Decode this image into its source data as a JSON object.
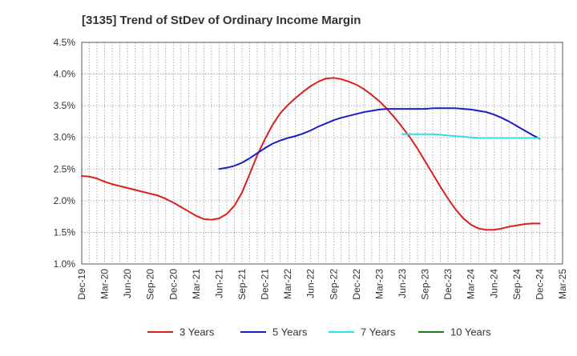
{
  "chart_data": {
    "type": "line",
    "title": "[3135]  Trend of StDev of Ordinary Income Margin",
    "xlabel": "",
    "ylabel": "",
    "y_tick_labels": [
      "1.0%",
      "1.5%",
      "2.0%",
      "2.5%",
      "3.0%",
      "3.5%",
      "4.0%",
      "4.5%"
    ],
    "ylim": [
      1.0,
      4.5
    ],
    "x_tick_labels": [
      "Dec-19",
      "Mar-20",
      "Jun-20",
      "Sep-20",
      "Dec-20",
      "Mar-21",
      "Jun-21",
      "Sep-21",
      "Dec-21",
      "Mar-22",
      "Jun-22",
      "Sep-22",
      "Dec-22",
      "Mar-23",
      "Jun-23",
      "Sep-23",
      "Dec-23",
      "Mar-24",
      "Jun-24",
      "Sep-24",
      "Dec-24",
      "Mar-25"
    ],
    "grid": true,
    "legend_position": "bottom",
    "series": [
      {
        "name": "3 Years",
        "color": "#dd1f1f",
        "x": [
          "Dec-19",
          "Jan-20",
          "Feb-20",
          "Mar-20",
          "Apr-20",
          "May-20",
          "Jun-20",
          "Jul-20",
          "Aug-20",
          "Sep-20",
          "Oct-20",
          "Nov-20",
          "Dec-20",
          "Jan-21",
          "Feb-21",
          "Mar-21",
          "Apr-21",
          "May-21",
          "Jun-21",
          "Jul-21",
          "Aug-21",
          "Sep-21",
          "Oct-21",
          "Nov-21",
          "Dec-21",
          "Jan-22",
          "Feb-22",
          "Mar-22",
          "Apr-22",
          "May-22",
          "Jun-22",
          "Jul-22",
          "Aug-22",
          "Sep-22",
          "Oct-22",
          "Nov-22",
          "Dec-22",
          "Jan-23",
          "Feb-23",
          "Mar-23",
          "Apr-23",
          "May-23",
          "Jun-23",
          "Jul-23",
          "Aug-23",
          "Sep-23",
          "Oct-23",
          "Nov-23",
          "Dec-23",
          "Jan-24",
          "Feb-24",
          "Mar-24",
          "Apr-24",
          "May-24",
          "Jun-24",
          "Jul-24",
          "Aug-24",
          "Sep-24",
          "Oct-24",
          "Nov-24",
          "Dec-24"
        ],
        "values": [
          2.39,
          2.38,
          2.35,
          2.3,
          2.26,
          2.23,
          2.2,
          2.17,
          2.14,
          2.11,
          2.08,
          2.03,
          1.97,
          1.9,
          1.83,
          1.76,
          1.71,
          1.7,
          1.72,
          1.79,
          1.92,
          2.13,
          2.42,
          2.72,
          2.97,
          3.2,
          3.38,
          3.51,
          3.62,
          3.72,
          3.81,
          3.88,
          3.93,
          3.94,
          3.92,
          3.88,
          3.83,
          3.76,
          3.67,
          3.57,
          3.45,
          3.31,
          3.16,
          3.0,
          2.82,
          2.62,
          2.42,
          2.22,
          2.03,
          1.86,
          1.72,
          1.62,
          1.56,
          1.54,
          1.54,
          1.56,
          1.59,
          1.61,
          1.63,
          1.64,
          1.64
        ]
      },
      {
        "name": "5 Years",
        "color": "#1c1cc4",
        "x": [
          "Jun-21",
          "Jul-21",
          "Aug-21",
          "Sep-21",
          "Oct-21",
          "Nov-21",
          "Dec-21",
          "Jan-22",
          "Feb-22",
          "Mar-22",
          "Apr-22",
          "May-22",
          "Jun-22",
          "Jul-22",
          "Aug-22",
          "Sep-22",
          "Oct-22",
          "Nov-22",
          "Dec-22",
          "Jan-23",
          "Feb-23",
          "Mar-23",
          "Apr-23",
          "May-23",
          "Jun-23",
          "Jul-23",
          "Aug-23",
          "Sep-23",
          "Oct-23",
          "Nov-23",
          "Dec-23",
          "Jan-24",
          "Feb-24",
          "Mar-24",
          "Apr-24",
          "May-24",
          "Jun-24",
          "Jul-24",
          "Aug-24",
          "Sep-24",
          "Oct-24",
          "Nov-24",
          "Dec-24"
        ],
        "values": [
          2.5,
          2.52,
          2.55,
          2.6,
          2.67,
          2.75,
          2.83,
          2.9,
          2.95,
          2.99,
          3.02,
          3.06,
          3.11,
          3.17,
          3.22,
          3.27,
          3.31,
          3.34,
          3.37,
          3.4,
          3.42,
          3.44,
          3.45,
          3.45,
          3.45,
          3.45,
          3.45,
          3.45,
          3.46,
          3.46,
          3.46,
          3.46,
          3.45,
          3.44,
          3.42,
          3.4,
          3.36,
          3.31,
          3.25,
          3.18,
          3.11,
          3.04,
          2.98
        ]
      },
      {
        "name": "7 Years",
        "color": "#2fe0e6",
        "x": [
          "Jun-23",
          "Jul-23",
          "Aug-23",
          "Sep-23",
          "Oct-23",
          "Nov-23",
          "Dec-23",
          "Jan-24",
          "Feb-24",
          "Mar-24",
          "Apr-24",
          "May-24",
          "Jun-24",
          "Jul-24",
          "Aug-24",
          "Sep-24",
          "Oct-24",
          "Nov-24",
          "Dec-24"
        ],
        "values": [
          3.05,
          3.05,
          3.05,
          3.05,
          3.05,
          3.04,
          3.03,
          3.02,
          3.01,
          3.0,
          2.99,
          2.99,
          2.99,
          2.99,
          2.99,
          2.99,
          2.99,
          2.99,
          2.99
        ]
      },
      {
        "name": "10 Years",
        "color": "#1f7a1f",
        "x": [],
        "values": []
      }
    ]
  }
}
